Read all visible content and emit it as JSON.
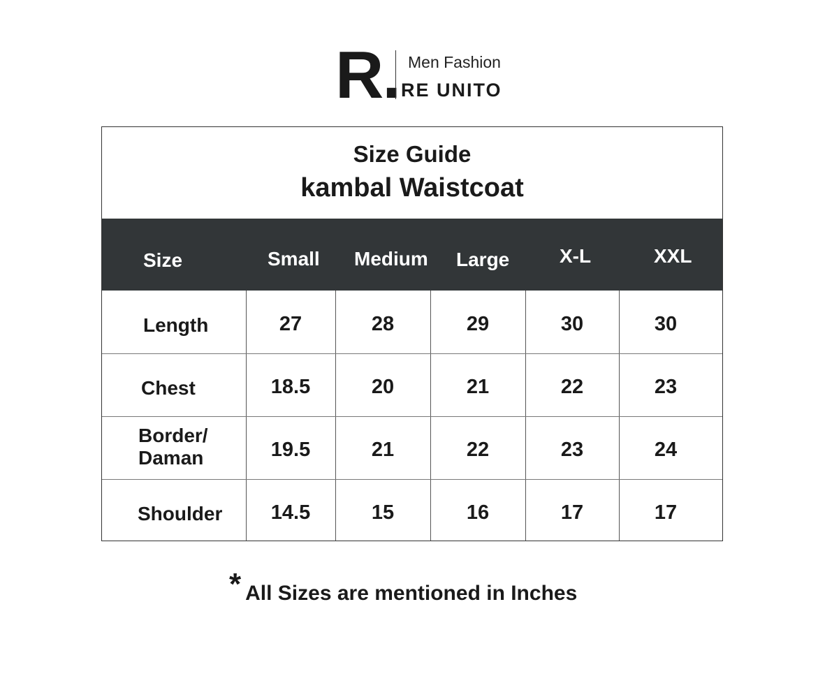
{
  "logo": {
    "mark": "R.",
    "tagline": "Men Fashion",
    "brand": "RE UNITO"
  },
  "title": {
    "line1": "Size Guide",
    "line2_a": "kambal",
    "line2_b": "Waistcoat"
  },
  "table": {
    "headers": [
      "Size",
      "Small",
      "Medium",
      "Large",
      "X-L",
      "XXL"
    ],
    "rows": [
      {
        "label": "Length",
        "values": [
          "27",
          "28",
          "29",
          "30",
          "30"
        ]
      },
      {
        "label": "Chest",
        "values": [
          "18.5",
          "20",
          "21",
          "22",
          "23"
        ]
      },
      {
        "label": "Border/ Daman",
        "values": [
          "19.5",
          "21",
          "22",
          "23",
          "24"
        ]
      },
      {
        "label": "Shoulder",
        "values": [
          "14.5",
          "15",
          "16",
          "17",
          "17"
        ]
      }
    ]
  },
  "footnote": {
    "star": "*",
    "text": "All Sizes are mentioned in Inches"
  },
  "colors": {
    "header_bg": "#323638",
    "text": "#1a1a1a"
  }
}
